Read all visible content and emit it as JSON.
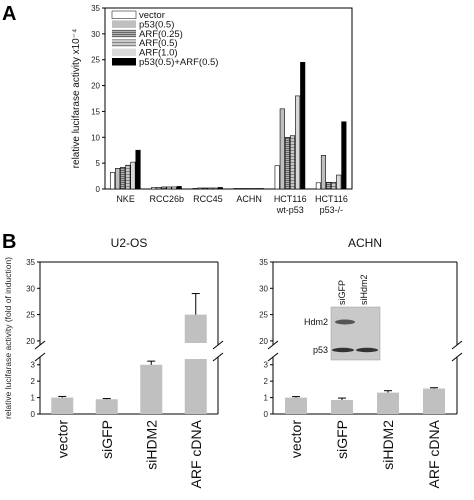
{
  "figure": {
    "panel_a_letter": "A",
    "panel_b_letter": "B"
  },
  "chart_data": [
    {
      "type": "bar",
      "panel": "A",
      "ylabel": "relative lucifarase activity x10⁻⁴",
      "ylim": [
        0,
        35
      ],
      "yticks": [
        0,
        5,
        10,
        15,
        20,
        25,
        30,
        35
      ],
      "groups": [
        {
          "label": "NKE",
          "label2": ""
        },
        {
          "label": "RCC26b",
          "label2": ""
        },
        {
          "label": "RCC45",
          "label2": ""
        },
        {
          "label": "ACHN",
          "label2": ""
        },
        {
          "label": "HCT116",
          "label2": "wt-p53"
        },
        {
          "label": "HCT116",
          "label2": "p53-/-"
        }
      ],
      "series": [
        {
          "name": "vector",
          "color": "#ffffff",
          "pattern": "none",
          "values": [
            3.2,
            0.3,
            0.1,
            0.1,
            4.5,
            1.2
          ]
        },
        {
          "name": "p53(0.5)",
          "color": "#bfbfbf",
          "pattern": "none",
          "values": [
            4.0,
            0.3,
            0.2,
            0.1,
            15.5,
            6.5
          ]
        },
        {
          "name": "ARF(0.25)",
          "color": "#8c8c8c",
          "pattern": "h",
          "values": [
            4.2,
            0.4,
            0.2,
            0.1,
            10.0,
            1.3
          ]
        },
        {
          "name": "ARF(0.5)",
          "color": "#a6a6a6",
          "pattern": "h",
          "values": [
            4.6,
            0.4,
            0.2,
            0.1,
            10.3,
            1.3
          ]
        },
        {
          "name": "ARF(1.0)",
          "color": "#d9d9d9",
          "pattern": "none",
          "values": [
            5.2,
            0.4,
            0.2,
            0.1,
            18.0,
            2.7
          ]
        },
        {
          "name": "p53(0.5)+ARF(0.5)",
          "color": "#000000",
          "pattern": "none",
          "values": [
            7.5,
            0.5,
            0.3,
            0.1,
            24.5,
            13.0
          ]
        }
      ],
      "legend_position": "top-left"
    },
    {
      "type": "bar",
      "panel": "B-left",
      "title": "U2-OS",
      "ylabel": "relative lucifarase activity (fold of induction)",
      "axis_break": true,
      "yticks_lower": [
        0,
        1,
        2,
        3
      ],
      "yticks_upper": [
        20,
        25,
        30,
        35
      ],
      "categories": [
        "vector",
        "siGFP",
        "siHDM2",
        "ARF cDNA"
      ],
      "values": [
        1.0,
        0.9,
        3.0,
        25.0
      ],
      "errors": [
        0.07,
        0.04,
        0.22,
        4.0
      ],
      "color": "#c0c0c0"
    },
    {
      "type": "bar",
      "panel": "B-right",
      "title": "ACHN",
      "axis_break": true,
      "yticks_lower": [
        0,
        1,
        2,
        3
      ],
      "yticks_upper": [
        20,
        25,
        30,
        35
      ],
      "categories": [
        "vector",
        "siGFP",
        "siHDM2",
        "ARF cDNA"
      ],
      "values": [
        1.0,
        0.85,
        1.3,
        1.55
      ],
      "errors": [
        0.06,
        0.12,
        0.12,
        0.05
      ],
      "color": "#c0c0c0",
      "inset": {
        "lane_labels": [
          "siGFP",
          "siHdm2"
        ],
        "row_labels": [
          "Hdm2",
          "p53"
        ]
      }
    }
  ]
}
